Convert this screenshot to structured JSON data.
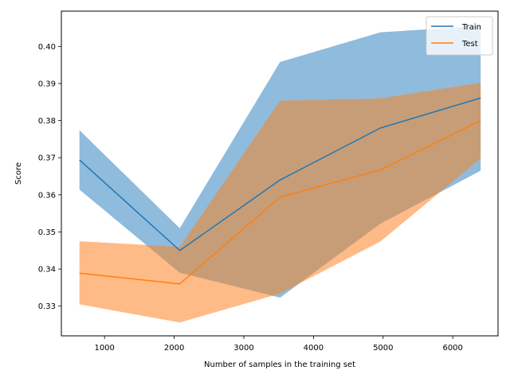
{
  "chart_data": {
    "type": "line",
    "title": "",
    "xlabel": "Number of samples in the training set",
    "ylabel": "Score",
    "xlim": [
      380,
      6650
    ],
    "ylim": [
      0.322,
      0.4095
    ],
    "xticks": [
      1000,
      2000,
      3000,
      4000,
      5000,
      6000
    ],
    "yticks": [
      0.33,
      0.34,
      0.35,
      0.36,
      0.37,
      0.38,
      0.39,
      0.4
    ],
    "xtick_labels": [
      "1000",
      "2000",
      "3000",
      "4000",
      "5000",
      "6000"
    ],
    "ytick_labels": [
      "0.33",
      "0.34",
      "0.35",
      "0.36",
      "0.37",
      "0.38",
      "0.39",
      "0.40"
    ],
    "grid": false,
    "legend_position": "top-right",
    "x": [
      640,
      2080,
      3520,
      4960,
      6400
    ],
    "series": [
      {
        "name": "Train",
        "color": "#1f77b4",
        "band_color": "#8fbbdc",
        "values": [
          0.3694,
          0.345,
          0.364,
          0.378,
          0.3861
        ],
        "upper": [
          0.3774,
          0.351,
          0.3958,
          0.4038,
          0.4055
        ],
        "lower": [
          0.3614,
          0.339,
          0.3323,
          0.3522,
          0.3665
        ]
      },
      {
        "name": "Test",
        "color": "#ff7f0e",
        "band_color": "#ffbb87",
        "values": [
          0.3389,
          0.336,
          0.3594,
          0.3667,
          0.38
        ],
        "upper": [
          0.3475,
          0.346,
          0.3854,
          0.386,
          0.3902
        ],
        "lower": [
          0.3305,
          0.3256,
          0.3334,
          0.3474,
          0.3698
        ]
      }
    ],
    "overlap_color": "#c79d78"
  }
}
